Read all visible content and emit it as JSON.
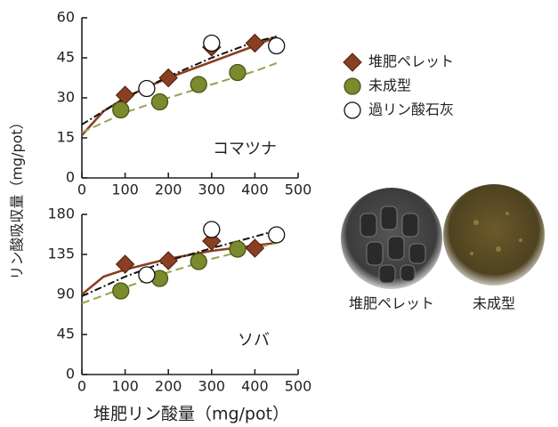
{
  "chart_data": [
    {
      "type": "scatter",
      "annotation": "コマツナ",
      "ylabel": "リン酸吸収量（mg/pot）",
      "xlim": [
        0,
        500
      ],
      "xticks": [
        0,
        100,
        200,
        300,
        400,
        500
      ],
      "ylim": [
        0,
        60
      ],
      "yticks": [
        0,
        15,
        30,
        45,
        60
      ],
      "series": [
        {
          "name": "堆肥ペレット",
          "marker": "diamond",
          "color": "#8b3f22",
          "x": [
            100,
            200,
            300,
            400
          ],
          "values": [
            31,
            37.5,
            49,
            50.5
          ]
        },
        {
          "name": "未成型",
          "marker": "circle",
          "color": "#7b8a2c",
          "x": [
            90,
            180,
            270,
            360
          ],
          "values": [
            25.5,
            28.5,
            35,
            39.5
          ]
        },
        {
          "name": "過リン酸石灰",
          "marker": "circle",
          "color": "#ffffff",
          "x": [
            150,
            300,
            450
          ],
          "values": [
            33.5,
            50.5,
            49.5
          ]
        }
      ],
      "trend_lines": [
        {
          "color": "#8b3f22",
          "style": "solid",
          "x": [
            0,
            50,
            100,
            150,
            200,
            250,
            300,
            350,
            400,
            450
          ],
          "values": [
            16,
            25,
            30,
            34,
            37.5,
            40.5,
            43.5,
            46.5,
            49.5,
            53
          ]
        },
        {
          "color": "#9aa050",
          "style": "dashed",
          "x": [
            0,
            100,
            200,
            300,
            400,
            450
          ],
          "values": [
            17,
            24.5,
            30,
            35,
            40,
            43
          ]
        },
        {
          "color": "#111111",
          "style": "dashdot",
          "x": [
            0,
            100,
            200,
            300,
            400,
            450
          ],
          "values": [
            20,
            30,
            38,
            45,
            51,
            53
          ]
        }
      ]
    },
    {
      "type": "scatter",
      "annotation": "ソバ",
      "xlabel": "堆肥リン酸量（mg/pot）",
      "xlim": [
        0,
        500
      ],
      "xticks": [
        0,
        100,
        200,
        300,
        400,
        500
      ],
      "ylim": [
        0,
        180
      ],
      "yticks": [
        0,
        45,
        90,
        135,
        180
      ],
      "series": [
        {
          "marker": "diamond",
          "color": "#8b3f22",
          "x": [
            100,
            200,
            300,
            400
          ],
          "values": [
            124,
            128,
            150,
            142
          ]
        },
        {
          "marker": "circle",
          "color": "#7b8a2c",
          "x": [
            90,
            180,
            270,
            360
          ],
          "values": [
            94,
            108,
            127,
            141
          ]
        },
        {
          "marker": "circle",
          "color": "#ffffff",
          "x": [
            150,
            300,
            450
          ],
          "values": [
            112,
            163,
            157
          ]
        }
      ],
      "trend_lines": [
        {
          "color": "#8b3f22",
          "style": "solid",
          "x": [
            0,
            50,
            100,
            200,
            300,
            400,
            450
          ],
          "values": [
            90,
            110,
            118,
            130,
            139,
            145,
            148
          ]
        },
        {
          "color": "#9aa050",
          "style": "dashed",
          "x": [
            0,
            100,
            200,
            300,
            400,
            450
          ],
          "values": [
            80,
            98,
            115,
            130,
            142,
            148
          ]
        },
        {
          "color": "#111111",
          "style": "dashdot",
          "x": [
            0,
            100,
            200,
            300,
            400,
            450
          ],
          "values": [
            88,
            110,
            128,
            142,
            155,
            162
          ]
        }
      ]
    }
  ],
  "photos": [
    {
      "caption": "堆肥ペレット"
    },
    {
      "caption": "未成型"
    }
  ]
}
